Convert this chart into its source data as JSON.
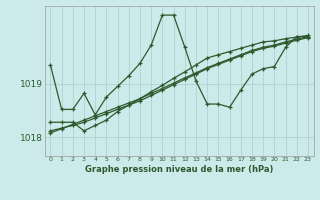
{
  "xlabel": "Graphe pression niveau de la mer (hPa)",
  "background_color": "#cceaea",
  "grid_color": "#aacccc",
  "line_color": "#2d5a2d",
  "ylim": [
    1017.65,
    1020.45
  ],
  "xlim": [
    -0.5,
    23.5
  ],
  "yticks": [
    1018,
    1019
  ],
  "xticks": [
    0,
    1,
    2,
    3,
    4,
    5,
    6,
    7,
    8,
    9,
    10,
    11,
    12,
    13,
    14,
    15,
    16,
    17,
    18,
    19,
    20,
    21,
    22,
    23
  ],
  "series": [
    [
      1019.35,
      1018.52,
      1018.52,
      1018.82,
      1018.42,
      1018.75,
      1018.95,
      1019.15,
      1019.38,
      1019.72,
      1020.28,
      1020.28,
      1019.68,
      1019.05,
      1018.62,
      1018.62,
      1018.56,
      1018.88,
      1019.18,
      1019.28,
      1019.32,
      1019.68,
      1019.88,
      1019.88
    ],
    [
      1018.28,
      1018.28,
      1018.28,
      1018.12,
      1018.22,
      1018.32,
      1018.48,
      1018.6,
      1018.72,
      1018.85,
      1018.97,
      1019.1,
      1019.22,
      1019.35,
      1019.48,
      1019.54,
      1019.6,
      1019.66,
      1019.72,
      1019.78,
      1019.8,
      1019.84,
      1019.87,
      1019.9
    ],
    [
      1018.12,
      1018.17,
      1018.22,
      1018.28,
      1018.36,
      1018.44,
      1018.52,
      1018.6,
      1018.68,
      1018.78,
      1018.88,
      1018.98,
      1019.08,
      1019.18,
      1019.28,
      1019.36,
      1019.44,
      1019.52,
      1019.6,
      1019.66,
      1019.7,
      1019.76,
      1019.81,
      1019.86
    ],
    [
      1018.08,
      1018.16,
      1018.24,
      1018.32,
      1018.4,
      1018.48,
      1018.56,
      1018.64,
      1018.72,
      1018.82,
      1018.91,
      1019.01,
      1019.11,
      1019.2,
      1019.3,
      1019.38,
      1019.46,
      1019.54,
      1019.62,
      1019.68,
      1019.72,
      1019.78,
      1019.83,
      1019.88
    ]
  ]
}
